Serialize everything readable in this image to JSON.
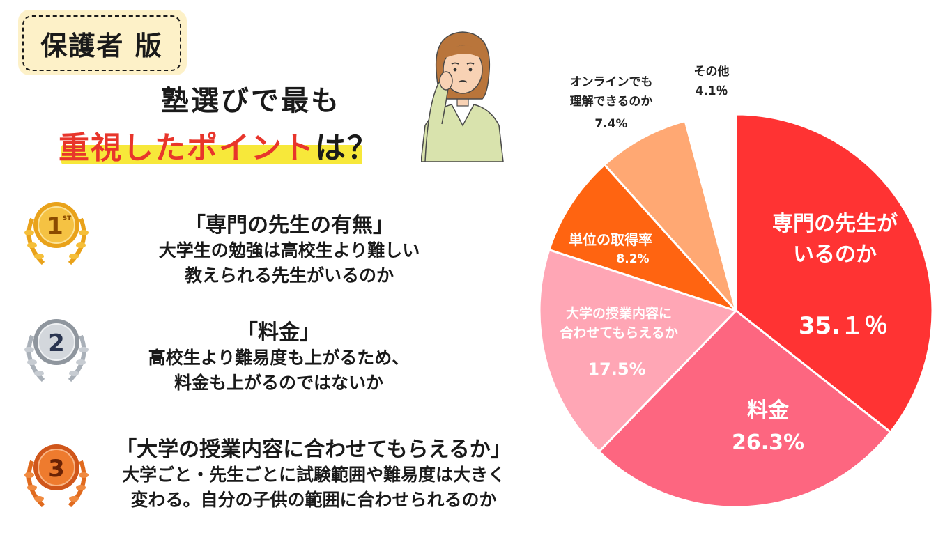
{
  "badge": {
    "label": "保護者 版"
  },
  "title": {
    "line1": "塾選びで最も",
    "line2_highlight": "重視したポイント",
    "line2_rest": "は？"
  },
  "ranks": [
    {
      "medal_text": "1",
      "medal_sup": "ST",
      "heading": "「専門の先生の有無」",
      "desc1": "大学生の勉強は高校生より難しい",
      "desc2": "教えられる先生がいるのか"
    },
    {
      "medal_text": "2",
      "heading": "「料金」",
      "desc1": "高校生より難易度も上がるため、",
      "desc2": "料金も上がるのではないか"
    },
    {
      "medal_text": "3",
      "heading": "「大学の授業内容に合わせてもらえるか」",
      "desc1": "大学ごと・先生ごとに試験範囲や難易度は大きく",
      "desc2": "変わる。自分の子供の範囲に合わせられるのか"
    }
  ],
  "colors": {
    "medal_gold": "#e9a21a",
    "medal_silver": "#a9b0b8",
    "medal_bronze": "#e06a1e"
  },
  "chart_data": {
    "type": "pie",
    "slices": [
      {
        "label_lines": [
          "専門の先生が",
          "いるのか"
        ],
        "value": 35.1,
        "value_text": "35.１％",
        "color": "#ff3333"
      },
      {
        "label_lines": [
          "料金"
        ],
        "value": 26.3,
        "value_text": "26.3%",
        "color": "#fd6680"
      },
      {
        "label_lines": [
          "大学の授業内容に",
          "合わせてもらえるか"
        ],
        "value": 17.5,
        "value_text": "17.5%",
        "color": "#ffa6b5"
      },
      {
        "label_lines": [
          "単位の取得率"
        ],
        "value": 8.2,
        "value_text": "8.2%",
        "color": "#ff6411"
      },
      {
        "label_lines": [
          "オンラインでも",
          "理解できるのか"
        ],
        "value": 7.4,
        "value_text": "7.4%",
        "color": "#ffa873"
      },
      {
        "label_lines": [
          "その他"
        ],
        "value": 4.1,
        "value_text": "4.1％",
        "color": "#ffffff"
      }
    ]
  }
}
